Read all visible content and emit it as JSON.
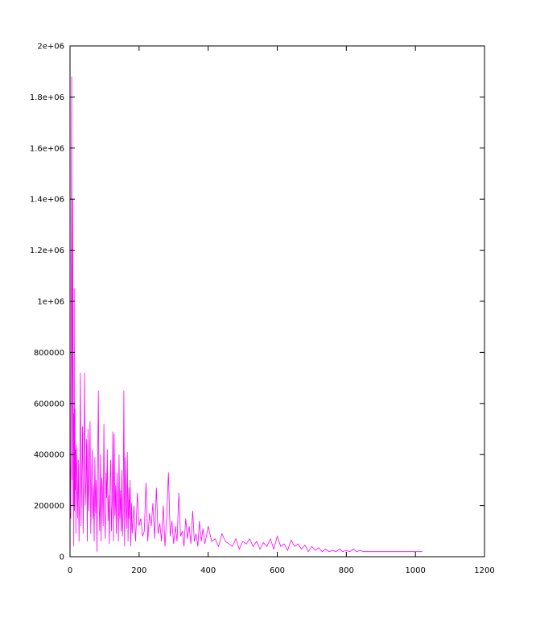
{
  "chart_data": {
    "type": "line",
    "title": "",
    "xlabel": "",
    "ylabel": "",
    "xlim": [
      0,
      1200
    ],
    "ylim": [
      0,
      2000000
    ],
    "x_ticks": [
      0,
      200,
      400,
      600,
      800,
      1000,
      1200
    ],
    "x_tick_labels": [
      "0",
      "200",
      "400",
      "600",
      "800",
      "1000",
      "1200"
    ],
    "y_ticks": [
      0,
      200000,
      400000,
      600000,
      800000,
      1000000,
      1200000,
      1400000,
      1600000,
      1800000,
      2000000
    ],
    "y_tick_labels": [
      "0",
      "200000",
      "400000",
      "600000",
      "800000",
      "1e+06",
      "1.2e+06",
      "1.4e+06",
      "1.6e+06",
      "1.8e+06",
      "2e+06"
    ],
    "grid": false,
    "legend": "none",
    "series_color": "#ff00ff",
    "series": [
      {
        "x": [
          0,
          2,
          4,
          5,
          6,
          7,
          8,
          9,
          10,
          11,
          12,
          13,
          14,
          15,
          16,
          17,
          18,
          20,
          22,
          24,
          26,
          28,
          30,
          32,
          34,
          36,
          38,
          40,
          42,
          44,
          46,
          48,
          50,
          52,
          54,
          56,
          58,
          60,
          62,
          64,
          66,
          68,
          70,
          72,
          74,
          76,
          78,
          80,
          82,
          84,
          86,
          88,
          90,
          92,
          94,
          96,
          98,
          100,
          102,
          104,
          106,
          108,
          110,
          112,
          114,
          116,
          118,
          120,
          122,
          124,
          126,
          128,
          130,
          132,
          134,
          136,
          138,
          140,
          142,
          144,
          146,
          148,
          150,
          152,
          154,
          156,
          158,
          160,
          162,
          164,
          166,
          168,
          170,
          172,
          174,
          176,
          178,
          180,
          185,
          190,
          195,
          200,
          205,
          210,
          215,
          220,
          225,
          230,
          235,
          240,
          245,
          250,
          255,
          260,
          265,
          270,
          275,
          280,
          285,
          290,
          295,
          300,
          305,
          310,
          315,
          320,
          325,
          330,
          335,
          340,
          345,
          350,
          355,
          360,
          365,
          370,
          375,
          380,
          385,
          390,
          395,
          400,
          410,
          420,
          430,
          440,
          450,
          460,
          470,
          480,
          490,
          500,
          510,
          520,
          530,
          540,
          550,
          560,
          570,
          580,
          590,
          600,
          610,
          620,
          630,
          640,
          650,
          660,
          670,
          680,
          690,
          700,
          710,
          720,
          730,
          740,
          750,
          760,
          770,
          780,
          790,
          800,
          810,
          820,
          830,
          840,
          850,
          860,
          880,
          900,
          950,
          1000,
          1020
        ],
        "y": [
          420000,
          150000,
          1150000,
          1880000,
          300000,
          900000,
          1400000,
          200000,
          560000,
          40000,
          1050000,
          180000,
          580000,
          260000,
          420000,
          90000,
          440000,
          330000,
          150000,
          380000,
          60000,
          280000,
          720000,
          120000,
          310000,
          510000,
          90000,
          330000,
          720000,
          200000,
          270000,
          460000,
          60000,
          500000,
          180000,
          310000,
          530000,
          90000,
          270000,
          420000,
          150000,
          280000,
          60000,
          390000,
          170000,
          300000,
          20000,
          330000,
          650000,
          200000,
          100000,
          400000,
          60000,
          310000,
          260000,
          120000,
          520000,
          180000,
          70000,
          330000,
          230000,
          420000,
          140000,
          240000,
          50000,
          300000,
          380000,
          100000,
          210000,
          490000,
          60000,
          480000,
          160000,
          280000,
          90000,
          330000,
          210000,
          60000,
          400000,
          150000,
          260000,
          100000,
          340000,
          80000,
          180000,
          650000,
          40000,
          390000,
          220000,
          110000,
          410000,
          60000,
          270000,
          150000,
          300000,
          40000,
          210000,
          90000,
          200000,
          60000,
          250000,
          120000,
          150000,
          80000,
          100000,
          290000,
          60000,
          170000,
          120000,
          210000,
          70000,
          270000,
          90000,
          130000,
          60000,
          200000,
          40000,
          160000,
          330000,
          80000,
          140000,
          50000,
          120000,
          60000,
          250000,
          80000,
          100000,
          40000,
          150000,
          70000,
          120000,
          50000,
          180000,
          60000,
          90000,
          40000,
          140000,
          60000,
          110000,
          50000,
          80000,
          120000,
          60000,
          70000,
          40000,
          90000,
          60000,
          50000,
          40000,
          70000,
          30000,
          60000,
          50000,
          70000,
          40000,
          60000,
          30000,
          55000,
          40000,
          70000,
          30000,
          80000,
          40000,
          50000,
          25000,
          65000,
          40000,
          50000,
          30000,
          45000,
          20000,
          40000,
          25000,
          35000,
          20000,
          30000,
          20000,
          25000,
          20000,
          30000,
          20000,
          25000,
          20000,
          30000,
          20000,
          25000,
          20000,
          20000,
          20000,
          20000,
          20000,
          20000,
          20000
        ]
      }
    ]
  }
}
